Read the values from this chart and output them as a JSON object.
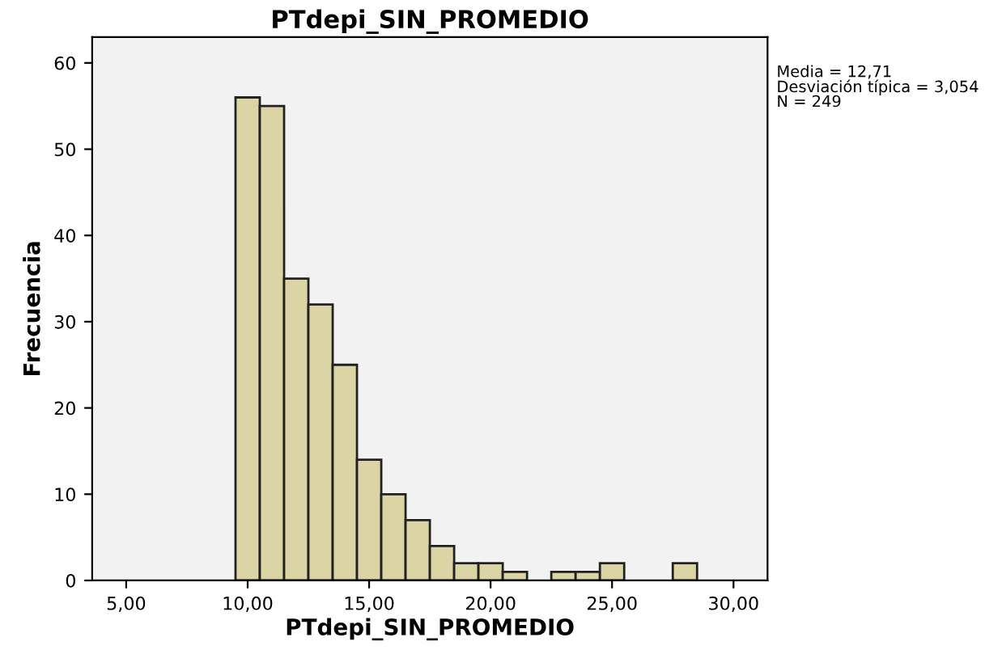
{
  "chart_data": {
    "type": "histogram",
    "title": "PTdepi_SIN_PROMEDIO",
    "xlabel": "PTdepi_SIN_PROMEDIO",
    "ylabel": "Frecuencia",
    "bins": [
      9.5,
      10.5,
      11.5,
      12.5,
      13.5,
      14.5,
      15.5,
      16.5,
      17.5,
      18.5,
      19.5,
      20.5,
      21.5,
      22.5,
      23.5,
      24.5,
      25.5,
      26.5,
      27.5,
      28.5
    ],
    "values": [
      56,
      55,
      35,
      32,
      25,
      14,
      10,
      7,
      4,
      2,
      2,
      1,
      0,
      1,
      1,
      2,
      0,
      0,
      2
    ],
    "color": "#dbd5a6",
    "xlim": [
      3.6,
      31.4
    ],
    "ylim": [
      0,
      63
    ],
    "xticks": [
      {
        "value": 5,
        "label": "5,00"
      },
      {
        "value": 10,
        "label": "10,00"
      },
      {
        "value": 15,
        "label": "15,00"
      },
      {
        "value": 20,
        "label": "20,00"
      },
      {
        "value": 25,
        "label": "25,00"
      },
      {
        "value": 30,
        "label": "30,00"
      }
    ],
    "yticks": [
      0,
      10,
      20,
      30,
      40,
      50,
      60
    ],
    "grid": false,
    "legend": false,
    "annotations": [
      "Media = 12,71\nDesviación típica = 3,054\nN = 249"
    ]
  }
}
